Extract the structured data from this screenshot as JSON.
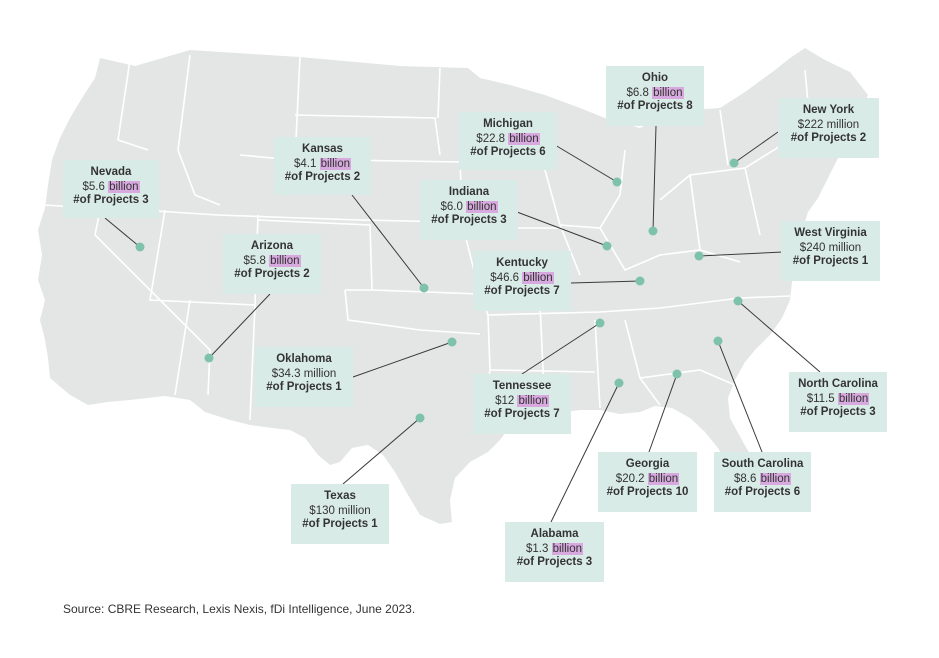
{
  "colors": {
    "land": "#e4e6e6",
    "border": "#ffffff",
    "callout_bg": "#d9ebe6",
    "marker": "#7ec2ab",
    "leader": "#3a3a3a",
    "billion_highlight": "#d7a9de"
  },
  "callouts": [
    {
      "id": "nevada",
      "state": "Nevada",
      "amount": "$5.6",
      "unit": "billion",
      "projects": "#of Projects 3"
    },
    {
      "id": "kansas",
      "state": "Kansas",
      "amount": "$4.1",
      "unit": "billion",
      "projects": "#of Projects 2"
    },
    {
      "id": "michigan",
      "state": "Michigan",
      "amount": "$22.8",
      "unit": "billion",
      "projects": "#of Projects 6"
    },
    {
      "id": "ohio",
      "state": "Ohio",
      "amount": "$6.8",
      "unit": "billion",
      "projects": "#of Projects 8"
    },
    {
      "id": "new-york",
      "state": "New York",
      "amount": "$222",
      "unit": "million",
      "projects": "#of Projects 2"
    },
    {
      "id": "indiana",
      "state": "Indiana",
      "amount": "$6.0",
      "unit": "billion",
      "projects": "#of Projects 3"
    },
    {
      "id": "arizona",
      "state": "Arizona",
      "amount": "$5.8",
      "unit": "billion",
      "projects": "#of Projects 2"
    },
    {
      "id": "west-virginia",
      "state": "West Virginia",
      "amount": "$240",
      "unit": "million",
      "projects": "#of Projects 1"
    },
    {
      "id": "kentucky",
      "state": "Kentucky",
      "amount": "$46.6",
      "unit": "billion",
      "projects": "#of Projects 7"
    },
    {
      "id": "oklahoma",
      "state": "Oklahoma",
      "amount": "$34.3",
      "unit": "million",
      "projects": "#of Projects 1"
    },
    {
      "id": "tennessee",
      "state": "Tennessee",
      "amount": "$12",
      "unit": "billion",
      "projects": "#of Projects 7"
    },
    {
      "id": "north-carolina",
      "state": "North Carolina",
      "amount": "$11.5",
      "unit": "billion",
      "projects": "#of Projects 3"
    },
    {
      "id": "georgia",
      "state": "Georgia",
      "amount": "$20.2",
      "unit": "billion",
      "projects": "#of Projects 10"
    },
    {
      "id": "south-carolina",
      "state": "South Carolina",
      "amount": "$8.6",
      "unit": "billion",
      "projects": "#of Projects 6"
    },
    {
      "id": "texas",
      "state": "Texas",
      "amount": "$130",
      "unit": "million",
      "projects": "#of Projects 1"
    },
    {
      "id": "alabama",
      "state": "Alabama",
      "amount": "$1.3",
      "unit": "billion",
      "projects": "#of Projects 3"
    }
  ],
  "source": "Source: CBRE Research, Lexis Nexis, fDi Intelligence, June 2023."
}
